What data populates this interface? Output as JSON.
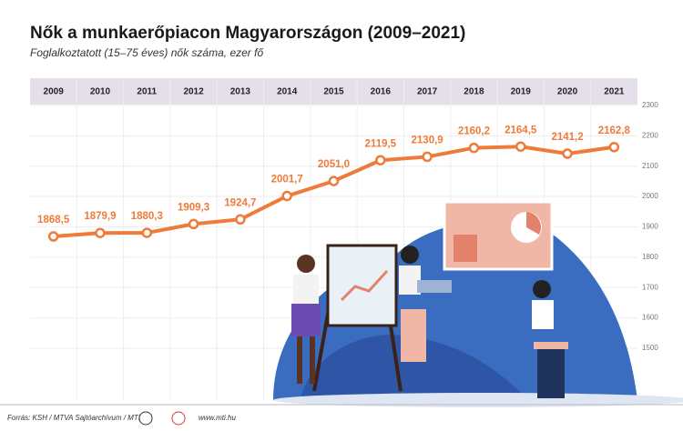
{
  "chart_data": {
    "type": "line",
    "title": "Nők a munkaerőpiacon Magyarországon (2009–2021)",
    "subtitle": "Foglalkoztatott (15–75 éves) nők száma, ezer fő",
    "categories": [
      "2009",
      "2010",
      "2011",
      "2012",
      "2013",
      "2014",
      "2015",
      "2016",
      "2017",
      "2018",
      "2019",
      "2020",
      "2021"
    ],
    "values": [
      1868.5,
      1879.9,
      1880.3,
      1909.3,
      1924.7,
      2001.7,
      2051.0,
      2119.5,
      2130.9,
      2160.2,
      2164.5,
      2141.2,
      2162.8
    ],
    "value_labels": [
      "1868,5",
      "1879,9",
      "1880,3",
      "1909,3",
      "1924,7",
      "2001,7",
      "2051,0",
      "2119,5",
      "2130,9",
      "2160,2",
      "2164,5",
      "2141,2",
      "2162,8"
    ],
    "color": "#ee7b3a",
    "ylim": [
      1500,
      2300
    ],
    "yticks": [
      1500,
      1600,
      1700,
      1800,
      1900,
      2000,
      2100,
      2200,
      2300
    ],
    "grid": true,
    "source": "Forrás: KSH / MTVA Sajtóarchívum / MTI",
    "website": "www.mti.hu"
  }
}
